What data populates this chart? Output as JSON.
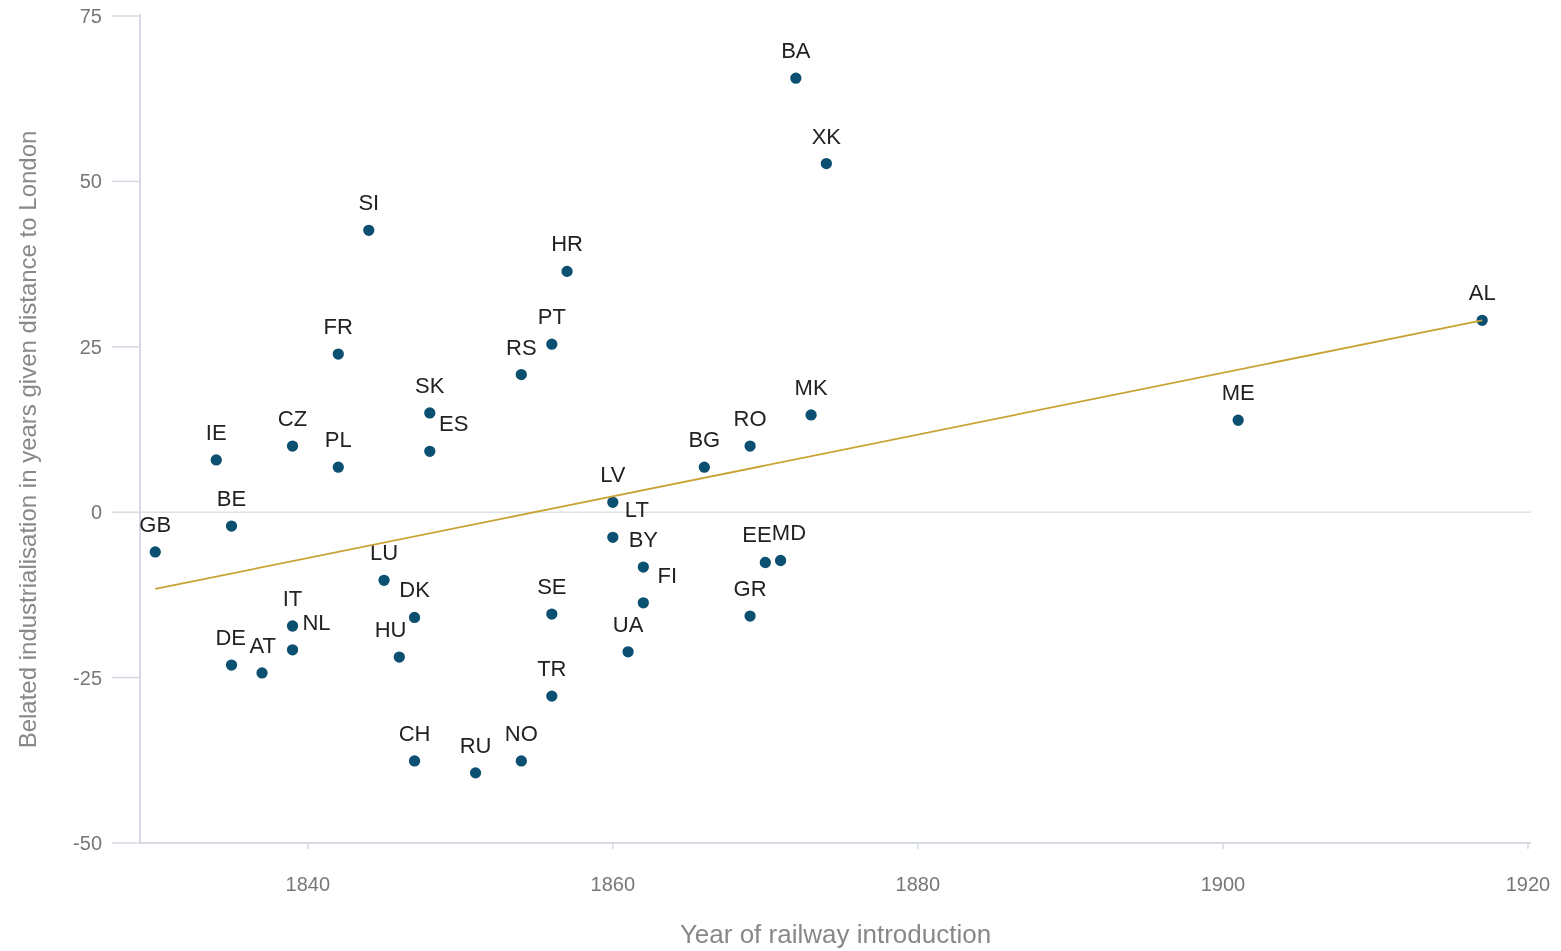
{
  "chart_data": {
    "type": "scatter",
    "xlabel": "Year of railway introduction",
    "ylabel": "Belated industrialisation in years given distance to London",
    "xlim": [
      1829,
      1920.2
    ],
    "xticks": [
      1840,
      1860,
      1880,
      1900,
      1920
    ],
    "ylim": [
      -50,
      75
    ],
    "yticks": [
      -50,
      -25,
      0,
      25,
      50,
      75
    ],
    "marker": "circle",
    "grid": false,
    "ref_lines": [
      {
        "axis": "y",
        "value": 0,
        "color": "#dde1e8"
      }
    ],
    "series": [
      {
        "color": "#0b4f71",
        "x": [
          1830,
          1834,
          1835,
          1835,
          1837,
          1839,
          1839,
          1839,
          1842,
          1842,
          1844,
          1845,
          1847,
          1846,
          1847,
          1848,
          1848,
          1851,
          1854,
          1854,
          1856,
          1857,
          1856,
          1856,
          1860,
          1860,
          1862,
          1862,
          1861,
          1866,
          1869,
          1869,
          1870,
          1871,
          1873,
          1872,
          1874,
          1901,
          1917
        ],
        "values": [
          -6.0,
          7.9,
          -2.1,
          -23.1,
          -24.3,
          -17.2,
          -20.8,
          10.0,
          6.8,
          23.9,
          42.6,
          -10.3,
          -15.9,
          -21.9,
          -37.6,
          15.0,
          9.2,
          -39.4,
          -37.6,
          20.8,
          25.4,
          36.4,
          -15.4,
          -27.8,
          1.5,
          -3.8,
          -8.3,
          -13.7,
          -21.1,
          6.8,
          10.0,
          -15.7,
          -7.6,
          -7.3,
          14.7,
          65.6,
          52.7,
          13.9,
          29.0
        ]
      },
      {
        "type": "line",
        "marker": "none",
        "color": "#c8a233",
        "x": [
          1830,
          1917
        ],
        "values": [
          -11.6,
          29.0
        ]
      }
    ],
    "annotations": [
      {
        "text": "GB",
        "x": 1830,
        "y": -6.0
      },
      {
        "text": "IE",
        "x": 1834,
        "y": 7.9
      },
      {
        "text": "BE",
        "x": 1835,
        "y": -2.1
      },
      {
        "text": "DE",
        "x": 1835,
        "y": -23.1
      },
      {
        "text": "AT",
        "x": 1837,
        "y": -24.3
      },
      {
        "text": "IT",
        "x": 1839,
        "y": -17.2
      },
      {
        "text": "NL",
        "x": 1839,
        "y": -20.8
      },
      {
        "text": "CZ",
        "x": 1839,
        "y": 10.0
      },
      {
        "text": "PL",
        "x": 1842,
        "y": 6.8
      },
      {
        "text": "FR",
        "x": 1842,
        "y": 23.9
      },
      {
        "text": "SI",
        "x": 1844,
        "y": 42.6
      },
      {
        "text": "LU",
        "x": 1845,
        "y": -10.3
      },
      {
        "text": "DK",
        "x": 1847,
        "y": -15.9
      },
      {
        "text": "HU",
        "x": 1846,
        "y": -21.9
      },
      {
        "text": "CH",
        "x": 1847,
        "y": -37.6
      },
      {
        "text": "SK",
        "x": 1848,
        "y": 15.0
      },
      {
        "text": "ES",
        "x": 1848,
        "y": 9.2
      },
      {
        "text": "RU",
        "x": 1851,
        "y": -39.4
      },
      {
        "text": "NO",
        "x": 1854,
        "y": -37.6
      },
      {
        "text": "RS",
        "x": 1854,
        "y": 20.8
      },
      {
        "text": "PT",
        "x": 1856,
        "y": 25.4
      },
      {
        "text": "HR",
        "x": 1857,
        "y": 36.4
      },
      {
        "text": "SE",
        "x": 1856,
        "y": -15.4
      },
      {
        "text": "TR",
        "x": 1856,
        "y": -27.8
      },
      {
        "text": "LV",
        "x": 1860,
        "y": 1.5
      },
      {
        "text": "LT",
        "x": 1860,
        "y": -3.8
      },
      {
        "text": "BY",
        "x": 1862,
        "y": -8.3
      },
      {
        "text": "FI",
        "x": 1862,
        "y": -13.7
      },
      {
        "text": "UA",
        "x": 1861,
        "y": -21.1
      },
      {
        "text": "BG",
        "x": 1866,
        "y": 6.8
      },
      {
        "text": "RO",
        "x": 1869,
        "y": 10.0
      },
      {
        "text": "GR",
        "x": 1869,
        "y": -15.7
      },
      {
        "text": "EE",
        "x": 1870,
        "y": -7.6
      },
      {
        "text": "MD",
        "x": 1871,
        "y": -7.3
      },
      {
        "text": "MK",
        "x": 1873,
        "y": 14.7
      },
      {
        "text": "BA",
        "x": 1872,
        "y": 65.6
      },
      {
        "text": "XK",
        "x": 1874,
        "y": 52.7
      },
      {
        "text": "ME",
        "x": 1901,
        "y": 13.9
      },
      {
        "text": "AL",
        "x": 1917,
        "y": 29.0
      }
    ]
  }
}
